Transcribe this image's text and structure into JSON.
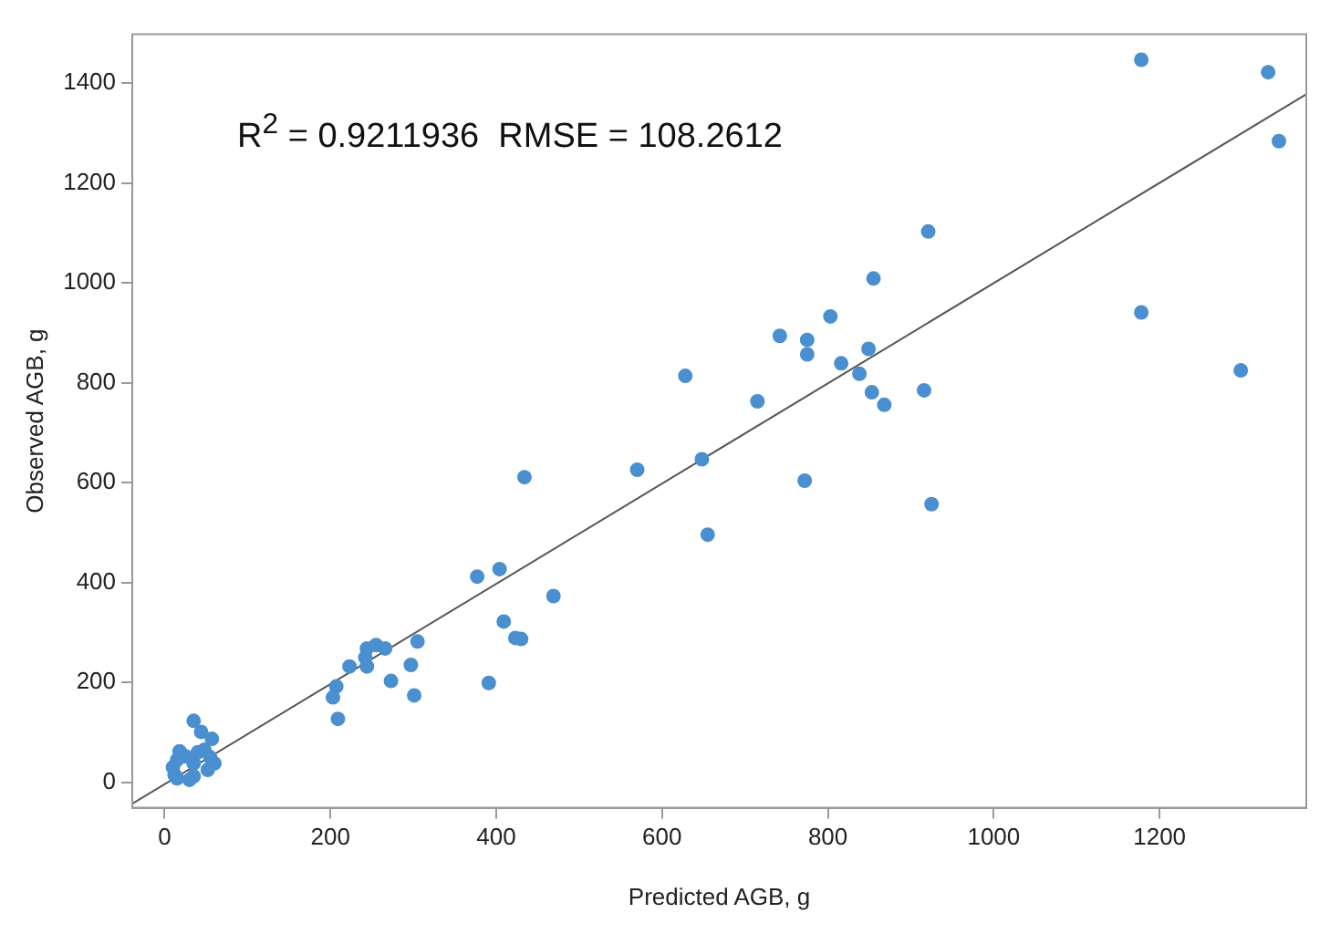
{
  "chart_data": {
    "type": "scatter",
    "xlabel": "Predicted AGB, g",
    "ylabel": "Observed AGB, g",
    "annotations": [
      "R$^{2}$ = 0.9211936  RMSE = 108.2612"
    ],
    "xlim": [
      -39,
      1377
    ],
    "ylim": [
      -51,
      1498
    ],
    "xticks": [
      0,
      200,
      400,
      600,
      800,
      1000,
      1200
    ],
    "yticks": [
      0,
      200,
      400,
      600,
      800,
      1000,
      1200,
      1400
    ],
    "grid": false,
    "legend": false,
    "marker": "circle",
    "series": [
      {
        "color": "#4a8fd0",
        "x": [
          1178,
          1331,
          1344,
          1178,
          1298,
          921,
          855,
          803,
          742,
          775,
          775,
          816,
          838,
          849,
          628,
          853,
          916,
          868,
          715,
          570,
          648,
          772,
          655,
          925,
          434,
          377,
          404,
          409,
          469,
          423,
          391,
          430,
          305,
          297,
          301,
          273,
          244,
          255,
          266,
          242,
          244,
          223,
          207,
          203,
          209,
          35,
          44,
          57,
          10,
          12,
          15,
          18,
          35,
          40,
          48,
          52,
          55,
          60,
          25,
          30,
          15,
          35
        ],
        "values": [
          1447,
          1422,
          1284,
          941,
          825,
          1103,
          1009,
          933,
          894,
          886,
          857,
          839,
          818,
          868,
          814,
          781,
          785,
          756,
          763,
          626,
          647,
          604,
          496,
          557,
          611,
          412,
          427,
          322,
          373,
          289,
          199,
          287,
          282,
          235,
          174,
          203,
          268,
          275,
          268,
          250,
          232,
          232,
          192,
          170,
          127,
          123,
          101,
          87,
          30,
          15,
          45,
          62,
          12,
          60,
          65,
          25,
          50,
          38,
          52,
          5,
          8,
          38
        ]
      },
      {
        "type": "line",
        "color": "#555555",
        "x": [
          -39,
          1377
        ],
        "values": [
          -43,
          1378
        ],
        "line_style": "solid",
        "marker": "none"
      }
    ]
  }
}
